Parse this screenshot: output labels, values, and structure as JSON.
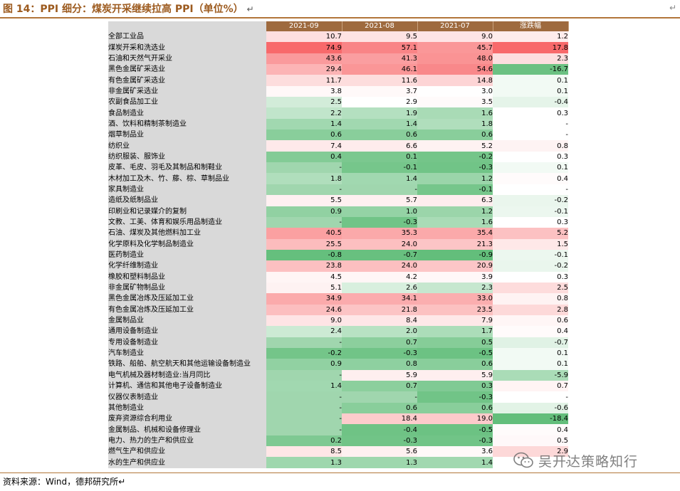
{
  "title": "图 14：PPI 细分：煤炭开采继续拉高 PPI（单位%）",
  "title_mark": "↵",
  "corner_mark": "↵",
  "colors": {
    "title": "#9c5a1e",
    "header_bg": "#9e6a3e",
    "name_bg": "#d9d9d9",
    "high_red": "#f8696b",
    "high_green": "#63be7b"
  },
  "table": {
    "headers": [
      "",
      "2021-09",
      "2021-08",
      "2021-07",
      "涨跌幅"
    ],
    "rows": [
      {
        "name": "全部工业品",
        "v": [
          "10.7",
          "9.5",
          "9.0",
          "1.2"
        ]
      },
      {
        "name": "煤炭开采和洗选业",
        "v": [
          "74.9",
          "57.1",
          "45.7",
          "17.8"
        ]
      },
      {
        "name": "石油和天然气开采业",
        "v": [
          "43.6",
          "41.3",
          "48.0",
          "2.3"
        ]
      },
      {
        "name": "黑色金属矿采选业",
        "v": [
          "29.4",
          "46.1",
          "54.6",
          "-16.7"
        ]
      },
      {
        "name": "有色金属矿采选业",
        "v": [
          "11.7",
          "11.6",
          "14.8",
          "0.1"
        ]
      },
      {
        "name": "非金属矿采选业",
        "v": [
          "3.8",
          "3.7",
          "3.0",
          "0.1"
        ]
      },
      {
        "name": "农副食品加工业",
        "v": [
          "2.5",
          "2.9",
          "3.5",
          "-0.4"
        ]
      },
      {
        "name": "食品制造业",
        "v": [
          "2.2",
          "1.9",
          "1.6",
          "0.3"
        ]
      },
      {
        "name": "酒、饮料和精制茶制造业",
        "v": [
          "1.4",
          "1.4",
          "1.8",
          "-"
        ]
      },
      {
        "name": "烟草制品业",
        "v": [
          "0.6",
          "0.6",
          "0.6",
          "-"
        ]
      },
      {
        "name": "纺织业",
        "v": [
          "7.4",
          "6.6",
          "5.2",
          "0.8"
        ]
      },
      {
        "name": "纺织服装、服饰业",
        "v": [
          "0.4",
          "0.1",
          "-0.2",
          "0.3"
        ]
      },
      {
        "name": "皮革、毛皮、羽毛及其制品和制鞋业",
        "v": [
          "-",
          "-0.1",
          "-0.3",
          "0.1"
        ]
      },
      {
        "name": "木材加工及木、竹、藤、棕、草制品业",
        "v": [
          "1.8",
          "1.4",
          "1.2",
          "0.4"
        ]
      },
      {
        "name": "家具制造业",
        "v": [
          "-",
          "-",
          "-0.1",
          "-"
        ]
      },
      {
        "name": "造纸及纸制品业",
        "v": [
          "5.5",
          "5.7",
          "6.3",
          "-0.2"
        ]
      },
      {
        "name": "印刷业和记录媒介的复制",
        "v": [
          "0.9",
          "1.0",
          "1.2",
          "-0.1"
        ]
      },
      {
        "name": "文教、工美、体育和娱乐用品制造业",
        "v": [
          "-",
          "-0.3",
          "1.6",
          "0.3"
        ]
      },
      {
        "name": "石油、煤炭及其他燃料加工业",
        "v": [
          "40.5",
          "35.3",
          "35.4",
          "5.2"
        ]
      },
      {
        "name": "化学原料及化学制品制造业",
        "v": [
          "25.5",
          "24.0",
          "21.3",
          "1.5"
        ]
      },
      {
        "name": "医药制造业",
        "v": [
          "-0.8",
          "-0.7",
          "-0.9",
          "-0.1"
        ]
      },
      {
        "name": "化学纤维制造业",
        "v": [
          "23.8",
          "24.0",
          "20.9",
          "-0.2"
        ]
      },
      {
        "name": "橡胶和塑料制品业",
        "v": [
          "4.5",
          "4.2",
          "3.9",
          "0.3"
        ]
      },
      {
        "name": "非金属矿物制品业",
        "v": [
          "5.1",
          "2.6",
          "2.3",
          "2.5"
        ]
      },
      {
        "name": "黑色金属冶炼及压延加工业",
        "v": [
          "34.9",
          "34.1",
          "33.0",
          "0.8"
        ]
      },
      {
        "name": "有色金属冶炼及压延加工业",
        "v": [
          "24.6",
          "21.8",
          "23.5",
          "2.8"
        ]
      },
      {
        "name": "金属制品业",
        "v": [
          "9.0",
          "8.4",
          "7.9",
          "0.6"
        ]
      },
      {
        "name": "通用设备制造业",
        "v": [
          "2.4",
          "2.0",
          "1.7",
          "0.4"
        ]
      },
      {
        "name": "专用设备制造业",
        "v": [
          "-",
          "0.7",
          "0.5",
          "-0.7"
        ]
      },
      {
        "name": "汽车制造业",
        "v": [
          "-0.2",
          "-0.3",
          "-0.5",
          "0.1"
        ]
      },
      {
        "name": "铁路、船舶、航空航天和其他运输设备制造业",
        "v": [
          "0.9",
          "0.8",
          "0.6",
          "0.1"
        ]
      },
      {
        "name": "电气机械及器材制造业:当月同比",
        "v": [
          "-",
          "5.9",
          "5.9",
          "-5.9"
        ]
      },
      {
        "name": "计算机、通信和其他电子设备制造业",
        "v": [
          "1.4",
          "0.7",
          "0.3",
          "0.7"
        ]
      },
      {
        "name": "仪器仪表制造业",
        "v": [
          "-",
          "-",
          "-0.3",
          "-"
        ]
      },
      {
        "name": "其他制造业",
        "v": [
          "-",
          "0.6",
          "0.6",
          "-0.6"
        ]
      },
      {
        "name": "废弃资源综合利用业",
        "v": [
          "-",
          "18.4",
          "19.0",
          "-18.4"
        ]
      },
      {
        "name": "金属制品、机械和设备修理业",
        "v": [
          "-",
          "-0.4",
          "-0.5",
          "0.4"
        ]
      },
      {
        "name": "电力、热力的生产和供应业",
        "v": [
          "0.2",
          "-0.3",
          "-0.3",
          "0.5"
        ]
      },
      {
        "name": "燃气生产和供应业",
        "v": [
          "8.5",
          "5.6",
          "3.6",
          "2.9"
        ]
      },
      {
        "name": "水的生产和供应业",
        "v": [
          "1.3",
          "1.3",
          "1.4",
          "-"
        ]
      }
    ]
  },
  "footer": "资料来源：Wind，德邦研究所↵",
  "watermark": {
    "text": "吴开达策略知行",
    "icon": "wechat-icon"
  }
}
